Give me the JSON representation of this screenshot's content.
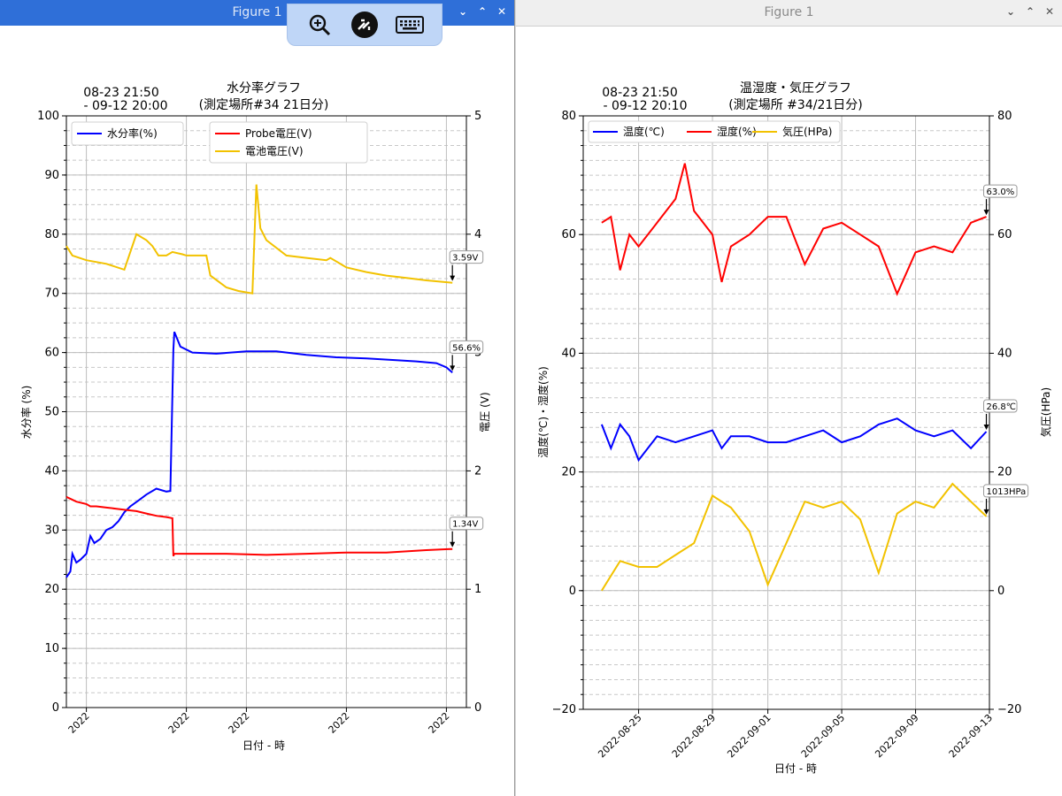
{
  "windows": {
    "left_title": "Figure 1",
    "right_title": "Figure 1"
  },
  "remote_toolbar": {
    "icons": [
      "zoom-in-icon",
      "connection-icon",
      "keyboard-icon"
    ]
  },
  "colors": {
    "blue": "#0000ff",
    "red": "#ff0000",
    "yellow": "#f2c200",
    "titlebar_active": "#2f6fd8"
  },
  "chart_data": [
    {
      "type": "line",
      "title": "水分率グラフ",
      "subtitle": "(測定場所#34 21日分)",
      "period": [
        "08-23 21:50",
        " - 09-12 20:00"
      ],
      "xlabel": "日付 - 時",
      "ylabel": "水分率 (%)",
      "y2label": "電圧 (V)",
      "ylim": [
        0,
        100
      ],
      "y2lim": [
        0,
        5
      ],
      "yticks": [
        0,
        10,
        20,
        30,
        40,
        50,
        60,
        70,
        80,
        90,
        100
      ],
      "y2ticks": [
        0,
        1,
        2,
        3,
        4,
        5
      ],
      "xlim": [
        0,
        20
      ],
      "xticks": [
        1,
        6,
        9,
        14,
        19
      ],
      "xtick_labels": [
        "2022",
        "2022",
        "2022",
        "2022",
        "2022"
      ],
      "grid": true,
      "legend_left": [
        "水分率(%)"
      ],
      "legend_right": [
        "Probe電圧(V)",
        "電池電圧(V)"
      ],
      "series": [
        {
          "name": "水分率(%)",
          "axis": "left",
          "color": "#0000ff",
          "x": [
            0,
            0.2,
            0.3,
            0.5,
            0.7,
            1.0,
            1.2,
            1.4,
            1.7,
            2.0,
            2.3,
            2.6,
            2.9,
            3.2,
            3.6,
            4.0,
            4.5,
            5.0,
            5.2,
            5.35,
            5.4,
            5.7,
            6.3,
            7.5,
            9.0,
            10.5,
            12.0,
            13.5,
            15.0,
            16.5,
            17.5,
            18.5,
            19.0,
            19.3
          ],
          "y": [
            22,
            23,
            26,
            24.5,
            25,
            26,
            29,
            27.8,
            28.5,
            30,
            30.5,
            31.5,
            33,
            34,
            35,
            36,
            37,
            36.5,
            36.6,
            60.5,
            63.5,
            61,
            60,
            59.8,
            60.2,
            60.2,
            59.6,
            59.2,
            59.0,
            58.7,
            58.5,
            58.2,
            57.5,
            56.6
          ]
        },
        {
          "name": "Probe電圧(V)",
          "axis": "right",
          "color": "#ff0000",
          "x": [
            0,
            0.5,
            1.0,
            1.2,
            1.5,
            2.0,
            2.5,
            3.0,
            3.5,
            4.0,
            4.5,
            5.0,
            5.3,
            5.35,
            5.4,
            6.0,
            8.0,
            10.0,
            12.0,
            14.0,
            16.0,
            18.0,
            19.3
          ],
          "y": [
            1.78,
            1.74,
            1.72,
            1.7,
            1.7,
            1.69,
            1.68,
            1.67,
            1.66,
            1.64,
            1.62,
            1.61,
            1.6,
            1.28,
            1.3,
            1.3,
            1.3,
            1.29,
            1.3,
            1.31,
            1.31,
            1.33,
            1.34
          ]
        },
        {
          "name": "電池電圧(V)",
          "axis": "right",
          "color": "#f2c200",
          "x": [
            0,
            0.3,
            1.0,
            2.0,
            2.9,
            3.5,
            4.0,
            4.3,
            4.6,
            5.0,
            5.3,
            5.8,
            6.0,
            7.0,
            7.2,
            8.0,
            8.6,
            9.3,
            9.5,
            9.7,
            10.0,
            11.0,
            12.0,
            13.0,
            13.2,
            14.0,
            15.0,
            16.0,
            17.0,
            18.0,
            19.3
          ],
          "y": [
            3.9,
            3.82,
            3.78,
            3.75,
            3.7,
            4.0,
            3.95,
            3.9,
            3.82,
            3.82,
            3.85,
            3.83,
            3.82,
            3.82,
            3.65,
            3.55,
            3.52,
            3.5,
            4.42,
            4.05,
            3.95,
            3.82,
            3.8,
            3.78,
            3.8,
            3.72,
            3.68,
            3.65,
            3.63,
            3.61,
            3.59
          ]
        }
      ],
      "annotations": [
        {
          "text": "3.59V",
          "x": 19.3,
          "y": 3.59,
          "axis": "right"
        },
        {
          "text": "56.6%",
          "x": 19.3,
          "y": 56.6,
          "axis": "left"
        },
        {
          "text": "1.34V",
          "x": 19.3,
          "y": 1.34,
          "axis": "right"
        }
      ]
    },
    {
      "type": "line",
      "title": "温湿度・気圧グラフ",
      "subtitle": "(測定場所 #34/21日分)",
      "period": [
        "08-23 21:50",
        " - 09-12 20:10"
      ],
      "xlabel": "日付 - 時",
      "ylabel": "温度(℃)・湿度(%)",
      "y2label": "気圧(HPa)",
      "ylim": [
        -20,
        80
      ],
      "y2lim": [
        -20,
        80
      ],
      "yticks": [
        -20,
        0,
        20,
        40,
        60,
        80
      ],
      "y2ticks": [
        -20,
        0,
        20,
        40,
        60,
        80
      ],
      "xlim": [
        "2022-08-22",
        "2022-09-13"
      ],
      "xtick_labels": [
        "2022-08-25",
        "2022-08-29",
        "2022-09-01",
        "2022-09-05",
        "2022-09-09",
        "2022-09-13"
      ],
      "grid": true,
      "legend": [
        "温度(℃)",
        "湿度(%)",
        "気圧(HPa)"
      ],
      "series": [
        {
          "name": "温度(℃)",
          "color": "#0000ff",
          "x": [
            "2022-08-23",
            "2022-08-23 12:00",
            "2022-08-24",
            "2022-08-24 12:00",
            "2022-08-25",
            "2022-08-26",
            "2022-08-27",
            "2022-08-28",
            "2022-08-29",
            "2022-08-29 12:00",
            "2022-08-30",
            "2022-08-31",
            "2022-09-01",
            "2022-09-02",
            "2022-09-03",
            "2022-09-04",
            "2022-09-05",
            "2022-09-06",
            "2022-09-07",
            "2022-09-08",
            "2022-09-09",
            "2022-09-10",
            "2022-09-11",
            "2022-09-12",
            "2022-09-12 20:00"
          ],
          "y": [
            28,
            24,
            28,
            26,
            22,
            26,
            25,
            26,
            27,
            24,
            26,
            26,
            25,
            25,
            26,
            27,
            25,
            26,
            28,
            29,
            27,
            26,
            27,
            24,
            26.8
          ]
        },
        {
          "name": "湿度(%)",
          "color": "#ff0000",
          "x": [
            "2022-08-23",
            "2022-08-23 12:00",
            "2022-08-24",
            "2022-08-24 12:00",
            "2022-08-25",
            "2022-08-26",
            "2022-08-27",
            "2022-08-27 12:00",
            "2022-08-28",
            "2022-08-29",
            "2022-08-29 12:00",
            "2022-08-30",
            "2022-08-31",
            "2022-09-01",
            "2022-09-02",
            "2022-09-03",
            "2022-09-04",
            "2022-09-05",
            "2022-09-06",
            "2022-09-07",
            "2022-09-08",
            "2022-09-09",
            "2022-09-10",
            "2022-09-11",
            "2022-09-12",
            "2022-09-12 20:00"
          ],
          "y": [
            62,
            63,
            54,
            60,
            58,
            62,
            66,
            72,
            64,
            60,
            52,
            58,
            60,
            63,
            63,
            55,
            61,
            62,
            60,
            58,
            50,
            57,
            58,
            57,
            62,
            63.0
          ]
        },
        {
          "name": "気圧(HPa)",
          "color": "#f2c200",
          "x": [
            "2022-08-23",
            "2022-08-24",
            "2022-08-25",
            "2022-08-26",
            "2022-08-27",
            "2022-08-28",
            "2022-08-29",
            "2022-08-30",
            "2022-08-31",
            "2022-09-01",
            "2022-09-02",
            "2022-09-03",
            "2022-09-04",
            "2022-09-05",
            "2022-09-06",
            "2022-09-07",
            "2022-09-08",
            "2022-09-09",
            "2022-09-10",
            "2022-09-11",
            "2022-09-12",
            "2022-09-12 20:00"
          ],
          "y": [
            0,
            5,
            4,
            4,
            6,
            8,
            16,
            14,
            10,
            1,
            8,
            15,
            14,
            15,
            12,
            3,
            13,
            15,
            14,
            18,
            15,
            12.5
          ]
        }
      ],
      "annotations": [
        {
          "text": "63.0%",
          "x": "2022-09-12 20:00",
          "y": 63.0
        },
        {
          "text": "26.8℃",
          "x": "2022-09-12 20:00",
          "y": 26.8
        },
        {
          "text": "1013HPa",
          "x": "2022-09-12 20:00",
          "y": 12.5
        }
      ]
    }
  ]
}
